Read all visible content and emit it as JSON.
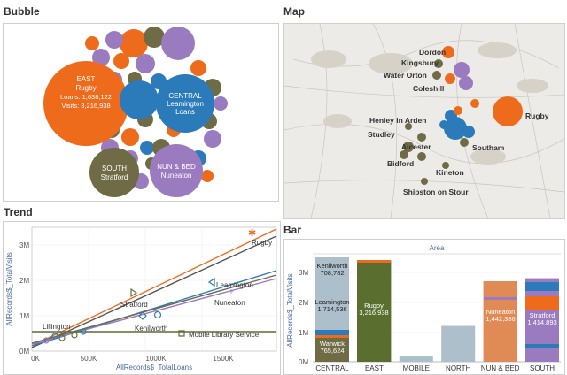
{
  "titles": {
    "bubble": "Bubble",
    "map": "Map",
    "trend": "Trend",
    "bar": "Bar"
  },
  "bubble": {
    "east": {
      "l1": "EAST",
      "l2": "Rugby",
      "l3": "Loans: 1,638,122",
      "l4": "Visits: 3,216,938"
    },
    "central": {
      "l1": "CENTRAL",
      "l2": "Leamington",
      "l3": "Loans"
    },
    "south": {
      "l1": "SOUTH",
      "l2": "Stratford"
    },
    "nunbed": {
      "l1": "NUN & BED",
      "l2": "Nuneaton"
    }
  },
  "map": {
    "labels": [
      "Dordon",
      "Kingsbury",
      "Water Orton",
      "Coleshill",
      "Rugby",
      "Henley in Arden",
      "Studley",
      "Alcester",
      "Southam",
      "Bidford",
      "Kineton",
      "Shipston on Stour"
    ]
  },
  "trend": {
    "xlabel": "AllRecords$_TotalLoans",
    "ylabel": "AllRecords$_TotalVisits",
    "xticks": [
      "0K",
      "500K",
      "1000K",
      "1500K"
    ],
    "yticks": [
      "0M",
      "1M",
      "2M",
      "3M"
    ],
    "labels": {
      "rugby": "Rugby",
      "leamington": "Leamington",
      "stratford": "Stratford",
      "nuneaton": "Nuneaton",
      "kenilworth": "Kenilworth",
      "lillington": "Lillington",
      "mobile": "Mobile Library Service"
    }
  },
  "bar": {
    "header": "Area",
    "ylabel": "AllRecords$_TotalVisits",
    "yticks": [
      "0M",
      "1M",
      "2M",
      "3M"
    ],
    "seg_labels": {
      "kenilworth": "Kenilworth",
      "kenilworth_v": "708,782",
      "leamington": "Leamington",
      "leamington_v": "1,714,536",
      "warwick": "Warwick",
      "warwick_v": "765,624",
      "rugby": "Rugby",
      "rugby_v": "3,216,938",
      "nuneaton": "Nuneaton",
      "nuneaton_v": "1,442,386",
      "stratford": "Stratford",
      "stratford_v": "1,414,893"
    }
  },
  "chart_data": {
    "type": "bar",
    "categories": [
      "CENTRAL",
      "EAST",
      "MOBILE",
      "NORTH",
      "NUN & BED",
      "SOUTH"
    ],
    "values": [
      3190000,
      3400000,
      200000,
      1200000,
      2700000,
      2800000
    ],
    "ylim": [
      0,
      3500000
    ],
    "ylabel": "AllRecords$_TotalVisits",
    "xlabel": "",
    "title": ""
  },
  "colors": {
    "orange": "#ef6b1c",
    "blue": "#2b7bba",
    "olive": "#6e6b45",
    "purple": "#9b7bbf",
    "darkgreen": "#5a6f2f",
    "lightblue": "#aebfcc"
  }
}
